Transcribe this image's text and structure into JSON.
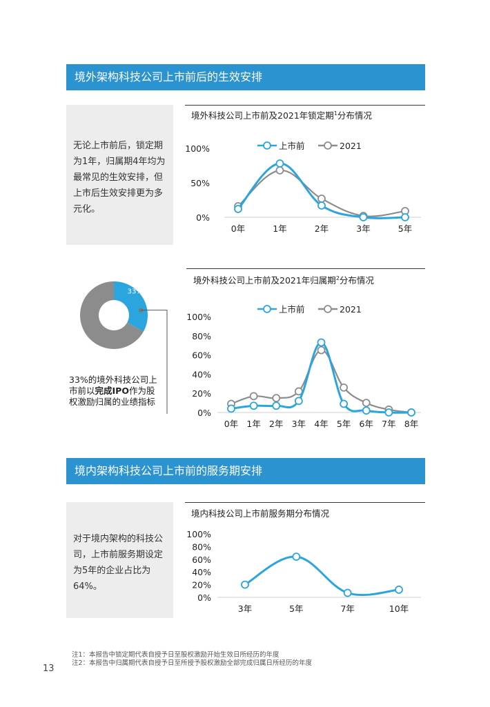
{
  "section1": {
    "title": "境外架构科技公司上市前后的生效安排",
    "summary": [
      "无论上市前后，锁定期",
      "为1年，归属期4年均为",
      "最常见的生效安排，但",
      "上市后生效安排更为多",
      "元化。"
    ]
  },
  "section2": {
    "title": "境内架构科技公司上市前的服务期安排",
    "summary": [
      "对于境内架构的科技公",
      "司，上市前服务期设定",
      "为5年的企业占比为",
      "64%。"
    ]
  },
  "donut": {
    "label": "33%",
    "share": 0.33,
    "caption_line1": "33%的境外科技公司上",
    "caption_line2_pre": "市前以",
    "caption_line2_bold": "完成IPO",
    "caption_line2_post": "作为股",
    "caption_line3": "权激励归属的业绩指标"
  },
  "colors": {
    "blue": "#2aa5dd",
    "gray": "#8c8c8c",
    "banner": "#2b93cf",
    "box": "#ededed"
  },
  "chart_data": [
    {
      "type": "line",
      "title_pre": "境外科技公司上市前及2021年锁定期",
      "title_sup": "1",
      "title_post": "分布情况",
      "categories": [
        "0年",
        "1年",
        "2年",
        "3年",
        "5年"
      ],
      "yticks": [
        "0%",
        "50%",
        "100%"
      ],
      "ylim": [
        0,
        100
      ],
      "legend": "top",
      "series": [
        {
          "name": "上市前",
          "color": "#2aa5dd",
          "values": [
            12,
            78,
            17,
            0,
            0
          ]
        },
        {
          "name": "2021",
          "color": "#8c8c8c",
          "values": [
            16,
            68,
            27,
            2,
            9
          ]
        }
      ]
    },
    {
      "type": "line",
      "title_pre": "境外科技公司上市前及2021年归属期",
      "title_sup": "2",
      "title_post": "分布情况",
      "categories": [
        "0年",
        "1年",
        "2年",
        "3年",
        "4年",
        "5年",
        "6年",
        "7年",
        "8年"
      ],
      "yticks": [
        "0%",
        "20%",
        "40%",
        "60%",
        "80%",
        "100%"
      ],
      "ylim": [
        0,
        100
      ],
      "legend": "top",
      "series": [
        {
          "name": "上市前",
          "color": "#2aa5dd",
          "values": [
            4,
            7,
            7,
            12,
            73,
            9,
            2,
            0,
            0
          ]
        },
        {
          "name": "2021",
          "color": "#8c8c8c",
          "values": [
            9,
            17,
            15,
            22,
            65,
            26,
            10,
            3,
            0
          ]
        }
      ]
    },
    {
      "type": "line",
      "title": "境内科技公司上市前服务期分布情况",
      "categories": [
        "3年",
        "5年",
        "7年",
        "10年"
      ],
      "yticks": [
        "0%",
        "20%",
        "40%",
        "60%",
        "80%",
        "100%"
      ],
      "ylim": [
        0,
        100
      ],
      "series": [
        {
          "color": "#2aa5dd",
          "values": [
            20,
            64,
            7,
            12
          ]
        }
      ]
    }
  ],
  "notes": [
    "注1：本报告中锁定期代表自授予日至股权激励开始生效日所经历的年度",
    "注2：本报告中归属期代表自授予日至所授予股权激励全部完成归属日所经历的年度"
  ],
  "page_number": "13"
}
